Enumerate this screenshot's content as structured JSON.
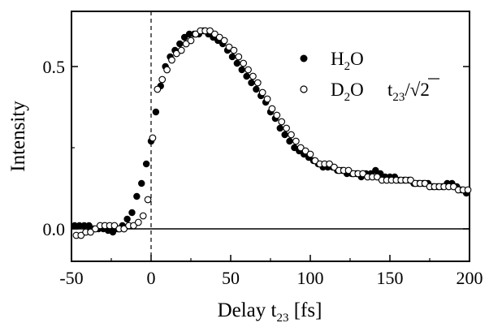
{
  "chart_data": {
    "type": "scatter",
    "xlabel": "Delay t23 [fs]",
    "ylabel": "Intensity",
    "xlim": [
      -50,
      200
    ],
    "ylim": [
      -0.1,
      0.67
    ],
    "xticks": [
      -50,
      0,
      50,
      100,
      150,
      200
    ],
    "xtick_labels": [
      "-50",
      "0",
      "50",
      "100",
      "150",
      "200"
    ],
    "yticks": [
      0.0,
      0.5
    ],
    "ytick_labels": [
      "0.0",
      "0.5"
    ],
    "grid": false,
    "legend_position": "upper-right",
    "vline_x": 0,
    "hline_y": 0,
    "series": [
      {
        "name": "H2O",
        "marker": "filled-circle",
        "color": "#000000",
        "x": [
          -48,
          -45,
          -42,
          -39,
          -36,
          -33,
          -30,
          -27,
          -24,
          -21,
          -18,
          -15,
          -12,
          -9,
          -6,
          -3,
          0,
          3,
          6,
          9,
          12,
          15,
          18,
          21,
          24,
          27,
          30,
          33,
          36,
          39,
          42,
          45,
          48,
          51,
          54,
          57,
          60,
          63,
          66,
          69,
          72,
          75,
          78,
          81,
          84,
          87,
          90,
          93,
          96,
          99,
          102,
          105,
          108,
          111,
          114,
          117,
          120,
          123,
          126,
          129,
          132,
          135,
          138,
          141,
          144,
          147,
          150,
          153,
          156,
          159,
          162,
          165,
          168,
          171,
          174,
          177,
          180,
          183,
          186,
          189,
          192,
          195,
          198
        ],
        "y": [
          0.01,
          0.01,
          0.01,
          0.01,
          0.0,
          0.0,
          0.0,
          -0.005,
          -0.01,
          0.0,
          0.01,
          0.03,
          0.05,
          0.1,
          0.14,
          0.2,
          0.27,
          0.36,
          0.44,
          0.5,
          0.53,
          0.55,
          0.57,
          0.59,
          0.6,
          0.6,
          0.6,
          0.61,
          0.6,
          0.59,
          0.58,
          0.57,
          0.55,
          0.53,
          0.51,
          0.49,
          0.47,
          0.45,
          0.43,
          0.41,
          0.39,
          0.36,
          0.34,
          0.31,
          0.29,
          0.27,
          0.25,
          0.24,
          0.23,
          0.22,
          0.21,
          0.2,
          0.19,
          0.19,
          0.19,
          0.18,
          0.18,
          0.17,
          0.17,
          0.17,
          0.16,
          0.17,
          0.17,
          0.18,
          0.17,
          0.16,
          0.16,
          0.16,
          0.15,
          0.15,
          0.15,
          0.14,
          0.14,
          0.14,
          0.14,
          0.13,
          0.13,
          0.13,
          0.14,
          0.14,
          0.13,
          0.12,
          0.11
        ]
      },
      {
        "name": "D2O",
        "marker": "open-circle",
        "color": "#000000",
        "x": [
          -47,
          -44,
          -41,
          -38,
          -35,
          -32,
          -29,
          -26,
          -23,
          -20,
          -17,
          -14,
          -11,
          -8,
          -5,
          -2,
          1,
          4,
          7,
          10,
          13,
          16,
          19,
          22,
          25,
          28,
          31,
          34,
          37,
          40,
          43,
          46,
          49,
          52,
          55,
          58,
          61,
          64,
          67,
          70,
          73,
          76,
          79,
          82,
          85,
          88,
          91,
          94,
          97,
          100,
          103,
          106,
          109,
          112,
          115,
          118,
          121,
          124,
          127,
          130,
          133,
          136,
          139,
          142,
          145,
          148,
          151,
          154,
          157,
          160,
          163,
          166,
          169,
          172,
          175,
          178,
          181,
          184,
          187,
          190,
          193,
          196,
          199
        ],
        "y": [
          -0.02,
          -0.02,
          -0.01,
          -0.01,
          0.0,
          0.01,
          0.01,
          0.01,
          0.01,
          0.0,
          0.0,
          0.01,
          0.01,
          0.02,
          0.04,
          0.09,
          0.28,
          0.43,
          0.46,
          0.49,
          0.52,
          0.54,
          0.55,
          0.57,
          0.58,
          0.6,
          0.61,
          0.61,
          0.61,
          0.6,
          0.59,
          0.58,
          0.56,
          0.55,
          0.53,
          0.51,
          0.49,
          0.47,
          0.45,
          0.42,
          0.4,
          0.37,
          0.35,
          0.33,
          0.31,
          0.29,
          0.27,
          0.25,
          0.24,
          0.23,
          0.21,
          0.2,
          0.2,
          0.2,
          0.19,
          0.18,
          0.18,
          0.18,
          0.17,
          0.17,
          0.17,
          0.16,
          0.16,
          0.16,
          0.15,
          0.15,
          0.15,
          0.15,
          0.15,
          0.15,
          0.15,
          0.14,
          0.14,
          0.14,
          0.13,
          0.13,
          0.13,
          0.13,
          0.13,
          0.13,
          0.12,
          0.12,
          0.12
        ]
      }
    ]
  }
}
